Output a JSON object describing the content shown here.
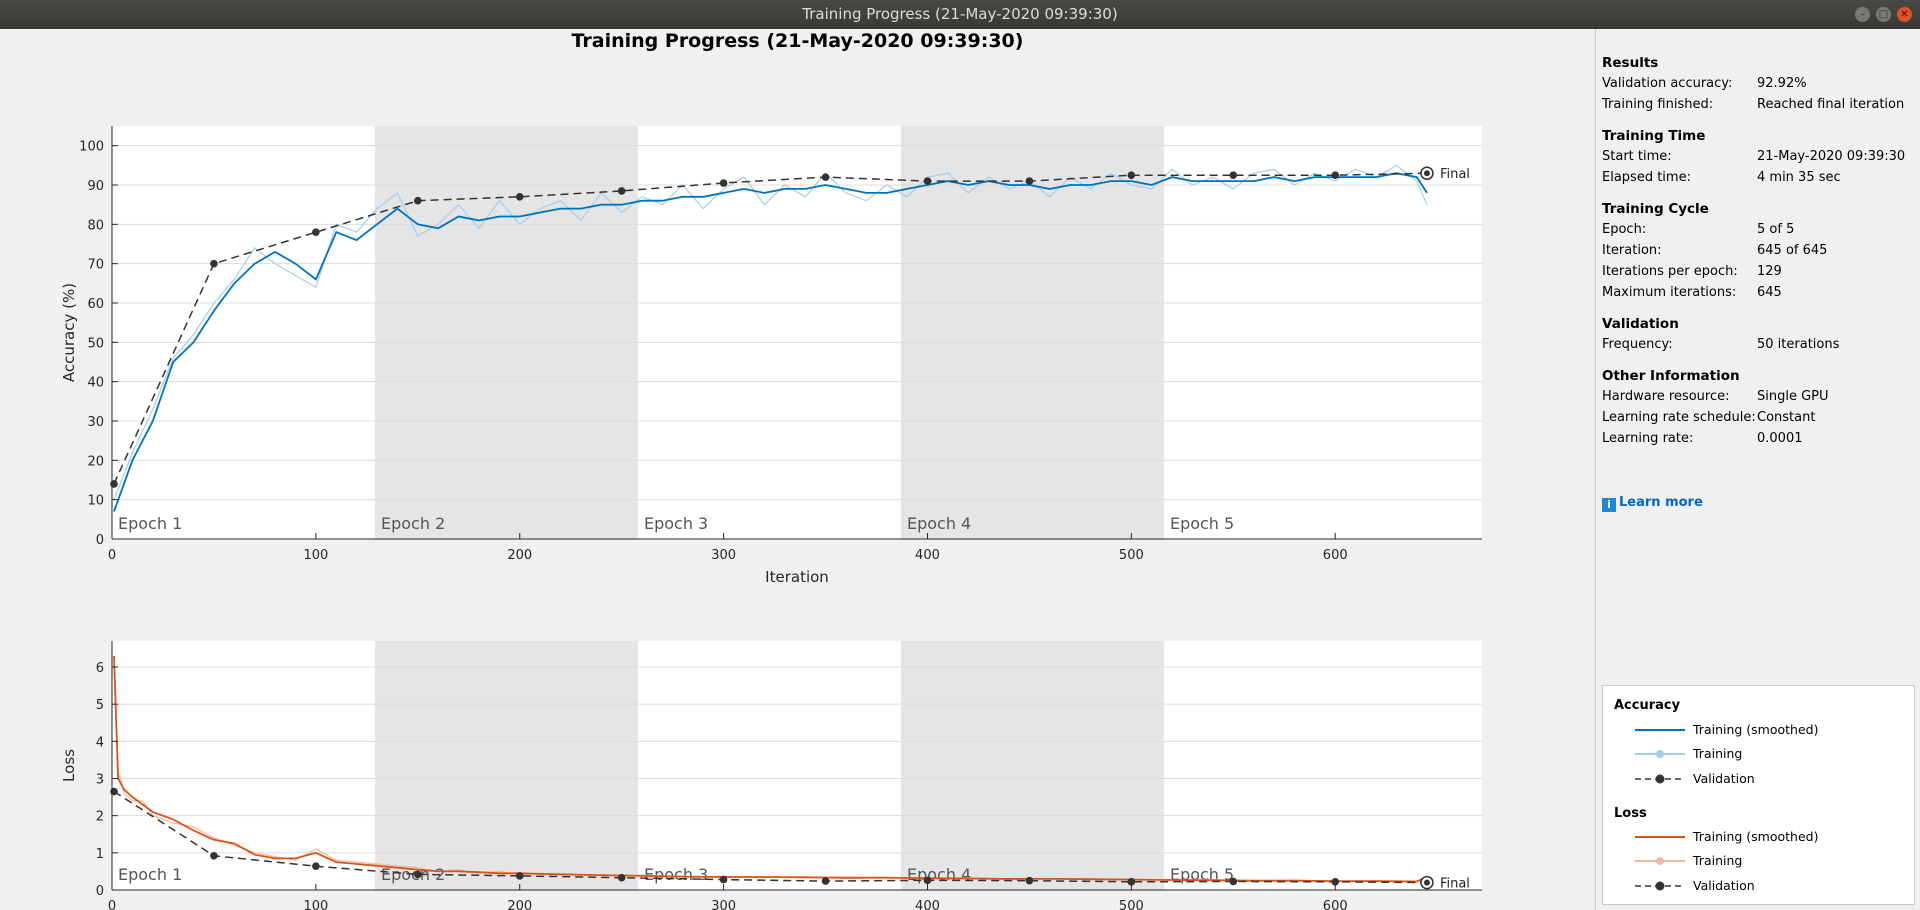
{
  "window": {
    "title": "Training Progress (21-May-2020 09:39:30)"
  },
  "main": {
    "title": "Training Progress (21-May-2020 09:39:30)"
  },
  "chart_data": [
    {
      "type": "line",
      "ylabel": "Accuracy (%)",
      "xlabel": "Iteration",
      "xlim": [
        0,
        672
      ],
      "ylim": [
        0,
        105
      ],
      "xticks": [
        0,
        100,
        200,
        300,
        400,
        500,
        600
      ],
      "yticks": [
        0,
        10,
        20,
        30,
        40,
        50,
        60,
        70,
        80,
        90,
        100
      ],
      "grid": true,
      "epochs": [
        {
          "label": "Epoch 1",
          "start": 0,
          "end": 129
        },
        {
          "label": "Epoch 2",
          "start": 129,
          "end": 258
        },
        {
          "label": "Epoch 3",
          "start": 258,
          "end": 387
        },
        {
          "label": "Epoch 4",
          "start": 387,
          "end": 516
        },
        {
          "label": "Epoch 5",
          "start": 516,
          "end": 645
        }
      ],
      "series": [
        {
          "name": "Training (smoothed)",
          "color": "#0072bd",
          "x": [
            1,
            10,
            20,
            30,
            40,
            50,
            60,
            70,
            80,
            90,
            100,
            110,
            120,
            130,
            140,
            150,
            160,
            170,
            180,
            190,
            200,
            210,
            220,
            230,
            240,
            250,
            260,
            270,
            280,
            290,
            300,
            310,
            320,
            330,
            340,
            350,
            360,
            370,
            380,
            390,
            400,
            410,
            420,
            430,
            440,
            450,
            460,
            470,
            480,
            490,
            500,
            510,
            520,
            530,
            540,
            550,
            560,
            570,
            580,
            590,
            600,
            610,
            620,
            630,
            640,
            645
          ],
          "values": [
            7,
            20,
            30,
            45,
            50,
            58,
            65,
            70,
            73,
            70,
            66,
            78,
            76,
            80,
            84,
            80,
            79,
            82,
            81,
            82,
            82,
            83,
            84,
            84,
            85,
            85,
            86,
            86,
            87,
            87,
            88,
            89,
            88,
            89,
            89,
            90,
            89,
            88,
            88,
            89,
            90,
            91,
            90,
            91,
            90,
            90,
            89,
            90,
            90,
            91,
            91,
            90,
            92,
            91,
            91,
            91,
            91,
            92,
            91,
            92,
            92,
            92,
            92,
            93,
            92,
            88
          ]
        },
        {
          "name": "Training",
          "color": "#a6cde8",
          "x": [
            1,
            10,
            20,
            30,
            40,
            50,
            60,
            70,
            80,
            90,
            100,
            110,
            120,
            130,
            140,
            150,
            160,
            170,
            180,
            190,
            200,
            210,
            220,
            230,
            240,
            250,
            260,
            270,
            280,
            290,
            300,
            310,
            320,
            330,
            340,
            350,
            360,
            370,
            380,
            390,
            400,
            410,
            420,
            430,
            440,
            450,
            460,
            470,
            480,
            490,
            500,
            510,
            520,
            530,
            540,
            550,
            560,
            570,
            580,
            590,
            600,
            610,
            620,
            630,
            640,
            645
          ],
          "values": [
            10,
            22,
            33,
            46,
            52,
            60,
            66,
            74,
            70,
            67,
            64,
            80,
            78,
            84,
            88,
            77,
            80,
            85,
            79,
            86,
            80,
            84,
            86,
            81,
            88,
            83,
            87,
            85,
            90,
            84,
            89,
            92,
            85,
            90,
            87,
            93,
            88,
            86,
            90,
            87,
            92,
            93,
            88,
            92,
            89,
            91,
            87,
            92,
            89,
            93,
            90,
            89,
            94,
            90,
            92,
            89,
            93,
            94,
            90,
            93,
            91,
            94,
            92,
            95,
            91,
            85
          ]
        },
        {
          "name": "Validation",
          "color": "#333333",
          "x": [
            1,
            50,
            100,
            150,
            200,
            250,
            300,
            350,
            400,
            450,
            500,
            550,
            600,
            645
          ],
          "values": [
            14,
            70,
            78,
            86,
            87,
            88.5,
            90.5,
            92,
            91,
            91,
            92.5,
            92.5,
            92.5,
            93
          ]
        }
      ],
      "final_label": "Final"
    },
    {
      "type": "line",
      "ylabel": "Loss",
      "xlabel": "Iteration",
      "xlim": [
        0,
        672
      ],
      "ylim": [
        0,
        6.7
      ],
      "xticks": [
        0,
        100,
        200,
        300,
        400,
        500,
        600
      ],
      "yticks": [
        0,
        1,
        2,
        3,
        4,
        5,
        6
      ],
      "grid": true,
      "epochs": [
        {
          "label": "Epoch 1",
          "start": 0,
          "end": 129
        },
        {
          "label": "Epoch 2",
          "start": 129,
          "end": 258
        },
        {
          "label": "Epoch 3",
          "start": 258,
          "end": 387
        },
        {
          "label": "Epoch 4",
          "start": 387,
          "end": 516
        },
        {
          "label": "Epoch 5",
          "start": 516,
          "end": 645
        }
      ],
      "series": [
        {
          "name": "Training (smoothed)",
          "color": "#d95319",
          "x": [
            1,
            3,
            6,
            10,
            15,
            20,
            30,
            40,
            50,
            60,
            70,
            80,
            90,
            100,
            110,
            120,
            130,
            140,
            150,
            160,
            170,
            180,
            190,
            200,
            220,
            240,
            260,
            280,
            300,
            320,
            340,
            360,
            380,
            400,
            420,
            440,
            460,
            480,
            500,
            520,
            540,
            560,
            580,
            600,
            620,
            640,
            645
          ],
          "values": [
            6.3,
            3.0,
            2.7,
            2.5,
            2.3,
            2.1,
            1.9,
            1.6,
            1.35,
            1.25,
            0.95,
            0.85,
            0.85,
            1.0,
            0.75,
            0.7,
            0.65,
            0.6,
            0.55,
            0.5,
            0.5,
            0.48,
            0.45,
            0.45,
            0.42,
            0.4,
            0.38,
            0.36,
            0.35,
            0.35,
            0.34,
            0.33,
            0.33,
            0.32,
            0.31,
            0.3,
            0.3,
            0.29,
            0.28,
            0.27,
            0.26,
            0.25,
            0.25,
            0.24,
            0.24,
            0.23,
            0.35
          ]
        },
        {
          "name": "Training",
          "color": "#f2b99f",
          "x": [
            1,
            3,
            6,
            10,
            15,
            20,
            30,
            40,
            50,
            60,
            70,
            80,
            90,
            100,
            110,
            120,
            130,
            140,
            150,
            160,
            170,
            180,
            190,
            200,
            220,
            240,
            260,
            280,
            300,
            320,
            340,
            360,
            380,
            400,
            420,
            440,
            460,
            480,
            500,
            520,
            540,
            560,
            580,
            600,
            620,
            640,
            645
          ],
          "values": [
            6.0,
            3.2,
            2.6,
            2.4,
            2.4,
            2.0,
            1.8,
            1.7,
            1.4,
            1.2,
            1.0,
            0.9,
            0.8,
            1.1,
            0.8,
            0.75,
            0.7,
            0.65,
            0.6,
            0.5,
            0.55,
            0.45,
            0.5,
            0.42,
            0.45,
            0.38,
            0.4,
            0.35,
            0.37,
            0.33,
            0.36,
            0.31,
            0.34,
            0.3,
            0.33,
            0.28,
            0.31,
            0.27,
            0.3,
            0.26,
            0.28,
            0.24,
            0.27,
            0.23,
            0.25,
            0.22,
            0.38
          ]
        },
        {
          "name": "Validation",
          "color": "#333333",
          "x": [
            1,
            50,
            100,
            150,
            200,
            250,
            300,
            350,
            400,
            450,
            500,
            550,
            600,
            645
          ],
          "values": [
            2.65,
            0.92,
            0.64,
            0.42,
            0.38,
            0.33,
            0.28,
            0.24,
            0.26,
            0.25,
            0.22,
            0.23,
            0.22,
            0.2
          ]
        }
      ],
      "final_label": "Final"
    }
  ],
  "sidebar": {
    "results": {
      "heading": "Results",
      "rows": [
        {
          "label": "Validation accuracy:",
          "value": "92.92%"
        },
        {
          "label": "Training finished:",
          "value": "Reached final iteration"
        }
      ]
    },
    "training_time": {
      "heading": "Training Time",
      "rows": [
        {
          "label": "Start time:",
          "value": "21-May-2020 09:39:30"
        },
        {
          "label": "Elapsed time:",
          "value": "4 min 35 sec"
        }
      ]
    },
    "training_cycle": {
      "heading": "Training Cycle",
      "rows": [
        {
          "label": "Epoch:",
          "value": "5 of 5"
        },
        {
          "label": "Iteration:",
          "value": "645 of 645"
        },
        {
          "label": "Iterations per epoch:",
          "value": "129"
        },
        {
          "label": "Maximum iterations:",
          "value": "645"
        }
      ]
    },
    "validation": {
      "heading": "Validation",
      "rows": [
        {
          "label": "Frequency:",
          "value": "50 iterations"
        }
      ]
    },
    "other": {
      "heading": "Other Information",
      "rows": [
        {
          "label": "Hardware resource:",
          "value": "Single GPU"
        },
        {
          "label": "Learning rate schedule:",
          "value": "Constant"
        },
        {
          "label": "Learning rate:",
          "value": "0.0001"
        }
      ]
    },
    "learn_more": "Learn more",
    "info_icon": "i"
  },
  "legend": {
    "accuracy": {
      "heading": "Accuracy",
      "items": [
        "Training (smoothed)",
        "Training",
        "Validation"
      ]
    },
    "loss": {
      "heading": "Loss",
      "items": [
        "Training (smoothed)",
        "Training",
        "Validation"
      ]
    }
  }
}
